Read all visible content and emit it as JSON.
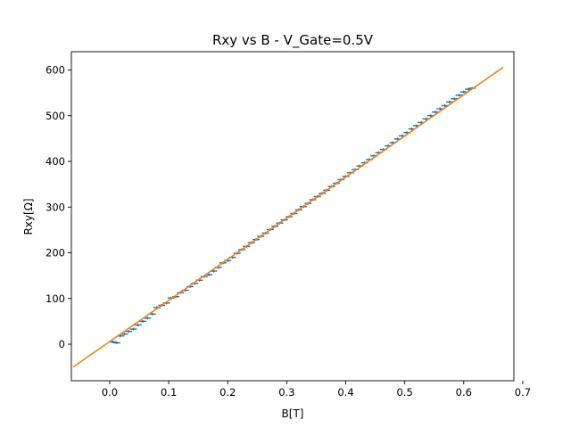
{
  "chart_data": {
    "type": "scatter",
    "title": "Rxy vs B - V_Gate=0.5V",
    "xlabel": "B[T]",
    "ylabel": "Rxy[Ω]",
    "xlim": [
      -0.065,
      0.685
    ],
    "ylim": [
      -80,
      640
    ],
    "xticks": [
      0.0,
      0.1,
      0.2,
      0.3,
      0.4,
      0.5,
      0.6,
      0.7
    ],
    "xtick_labels": [
      "0.0",
      "0.1",
      "0.2",
      "0.3",
      "0.4",
      "0.5",
      "0.6",
      "0.7"
    ],
    "yticks": [
      0,
      100,
      200,
      300,
      400,
      500,
      600
    ],
    "ytick_labels": [
      "0",
      "100",
      "200",
      "300",
      "400",
      "500",
      "600"
    ],
    "grid": false,
    "legend": "none",
    "series": [
      {
        "kind": "errorbar-points",
        "color": "#1f77b4",
        "points": [
          {
            "x": 0.005,
            "y": 5
          },
          {
            "x": 0.012,
            "y": 3
          },
          {
            "x": 0.018,
            "y": 18
          },
          {
            "x": 0.025,
            "y": 22
          },
          {
            "x": 0.032,
            "y": 28
          },
          {
            "x": 0.04,
            "y": 33
          },
          {
            "x": 0.048,
            "y": 42
          },
          {
            "x": 0.056,
            "y": 50
          },
          {
            "x": 0.064,
            "y": 57
          },
          {
            "x": 0.072,
            "y": 66
          },
          {
            "x": 0.08,
            "y": 80
          },
          {
            "x": 0.088,
            "y": 85
          },
          {
            "x": 0.096,
            "y": 90
          },
          {
            "x": 0.104,
            "y": 101
          },
          {
            "x": 0.112,
            "y": 104
          },
          {
            "x": 0.12,
            "y": 113
          },
          {
            "x": 0.128,
            "y": 118
          },
          {
            "x": 0.136,
            "y": 126
          },
          {
            "x": 0.144,
            "y": 133
          },
          {
            "x": 0.152,
            "y": 140
          },
          {
            "x": 0.16,
            "y": 148
          },
          {
            "x": 0.168,
            "y": 152
          },
          {
            "x": 0.176,
            "y": 160
          },
          {
            "x": 0.184,
            "y": 168
          },
          {
            "x": 0.192,
            "y": 178
          },
          {
            "x": 0.2,
            "y": 183
          },
          {
            "x": 0.208,
            "y": 190
          },
          {
            "x": 0.216,
            "y": 199
          },
          {
            "x": 0.224,
            "y": 207
          },
          {
            "x": 0.232,
            "y": 214
          },
          {
            "x": 0.24,
            "y": 222
          },
          {
            "x": 0.248,
            "y": 229
          },
          {
            "x": 0.256,
            "y": 236
          },
          {
            "x": 0.264,
            "y": 243
          },
          {
            "x": 0.272,
            "y": 251
          },
          {
            "x": 0.28,
            "y": 258
          },
          {
            "x": 0.288,
            "y": 265
          },
          {
            "x": 0.296,
            "y": 272
          },
          {
            "x": 0.304,
            "y": 279
          },
          {
            "x": 0.312,
            "y": 286
          },
          {
            "x": 0.32,
            "y": 294
          },
          {
            "x": 0.328,
            "y": 301
          },
          {
            "x": 0.336,
            "y": 308
          },
          {
            "x": 0.344,
            "y": 316
          },
          {
            "x": 0.352,
            "y": 323
          },
          {
            "x": 0.36,
            "y": 330
          },
          {
            "x": 0.368,
            "y": 337
          },
          {
            "x": 0.376,
            "y": 345
          },
          {
            "x": 0.384,
            "y": 352
          },
          {
            "x": 0.392,
            "y": 360
          },
          {
            "x": 0.4,
            "y": 367
          },
          {
            "x": 0.408,
            "y": 375
          },
          {
            "x": 0.416,
            "y": 382
          },
          {
            "x": 0.424,
            "y": 390
          },
          {
            "x": 0.432,
            "y": 397
          },
          {
            "x": 0.44,
            "y": 404
          },
          {
            "x": 0.448,
            "y": 412
          },
          {
            "x": 0.456,
            "y": 419
          },
          {
            "x": 0.464,
            "y": 426
          },
          {
            "x": 0.472,
            "y": 434
          },
          {
            "x": 0.48,
            "y": 441
          },
          {
            "x": 0.488,
            "y": 449
          },
          {
            "x": 0.496,
            "y": 456
          },
          {
            "x": 0.504,
            "y": 463
          },
          {
            "x": 0.512,
            "y": 471
          },
          {
            "x": 0.52,
            "y": 478
          },
          {
            "x": 0.528,
            "y": 485
          },
          {
            "x": 0.536,
            "y": 493
          },
          {
            "x": 0.544,
            "y": 500
          },
          {
            "x": 0.552,
            "y": 508
          },
          {
            "x": 0.56,
            "y": 515
          },
          {
            "x": 0.568,
            "y": 522
          },
          {
            "x": 0.576,
            "y": 530
          },
          {
            "x": 0.584,
            "y": 537
          },
          {
            "x": 0.592,
            "y": 545
          },
          {
            "x": 0.6,
            "y": 552
          },
          {
            "x": 0.608,
            "y": 558
          },
          {
            "x": 0.614,
            "y": 560
          }
        ]
      },
      {
        "kind": "fit-line",
        "color": "#ff7f0e",
        "x": [
          -0.062,
          0.667
        ],
        "y": [
          -50,
          606
        ]
      }
    ]
  }
}
